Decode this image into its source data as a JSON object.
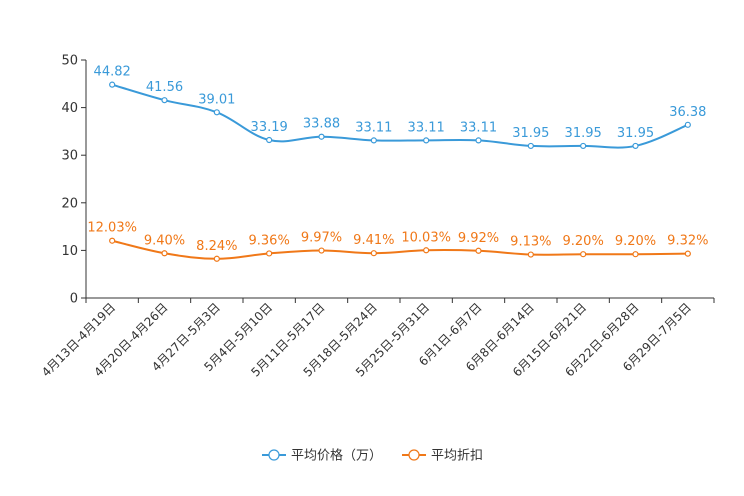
{
  "chart_data": {
    "type": "line",
    "title": "",
    "xlabel": "",
    "ylabel": "",
    "ylim": [
      0,
      50
    ],
    "yticks": [
      0,
      10,
      20,
      30,
      40,
      50
    ],
    "grid": false,
    "legend_position": "bottom-center",
    "categories": [
      "4月13日-4月19日",
      "4月20日-4月26日",
      "4月27日-5月3日",
      "5月4日-5月10日",
      "5月11日-5月17日",
      "5月18日-5月24日",
      "5月25日-5月31日",
      "6月1日-6月7日",
      "6月8日-6月14日",
      "6月15日-6月21日",
      "6月22日-6月28日",
      "6月29日-7月5日"
    ],
    "series": [
      {
        "name": "平均价格（万）",
        "color": "#3a9ad9",
        "values": [
          44.82,
          41.56,
          39.01,
          33.19,
          33.88,
          33.11,
          33.11,
          33.11,
          31.95,
          31.95,
          31.95,
          36.38
        ],
        "labels": [
          "44.82",
          "41.56",
          "39.01",
          "33.19",
          "33.88",
          "33.11",
          "33.11",
          "33.11",
          "31.95",
          "31.95",
          "31.95",
          "36.38"
        ]
      },
      {
        "name": "平均折扣",
        "color": "#f07818",
        "values": [
          12.03,
          9.4,
          8.24,
          9.36,
          9.97,
          9.41,
          10.03,
          9.92,
          9.13,
          9.2,
          9.2,
          9.32
        ],
        "labels": [
          "12.03%",
          "9.40%",
          "8.24%",
          "9.36%",
          "9.97%",
          "9.41%",
          "10.03%",
          "9.92%",
          "9.13%",
          "9.20%",
          "9.20%",
          "9.32%"
        ]
      }
    ]
  }
}
